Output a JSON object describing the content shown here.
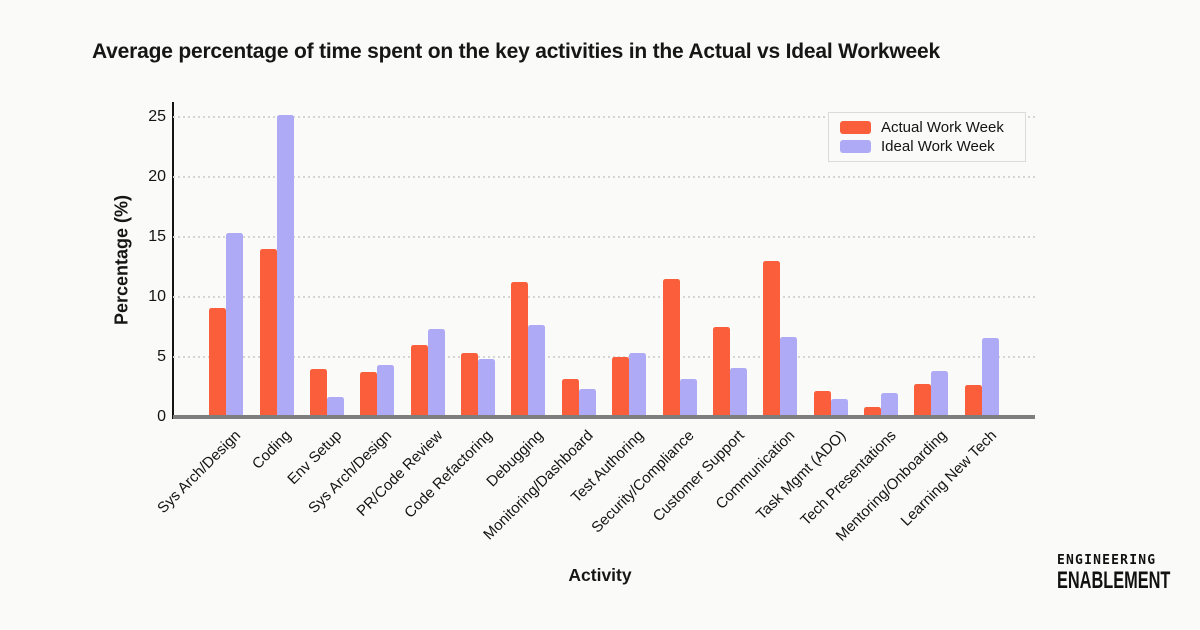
{
  "chart_data": {
    "type": "bar",
    "title": "Average percentage of time spent on the key activities in the Actual vs Ideal Workweek",
    "xlabel": "Activity",
    "ylabel": "Percentage (%)",
    "ylim": [
      0,
      26.25
    ],
    "yticks": [
      0,
      5,
      10,
      15,
      20,
      25
    ],
    "grid": "horizontal-dotted",
    "legend_position": "top-right",
    "categories": [
      "Sys Arch/Design",
      "Coding",
      "Env Setup",
      "Sys Arch/Design",
      "PR/Code Review",
      "Code Refactoring",
      "Debugging",
      "Monitoring/Dashboard",
      "Test Authoring",
      "Security/Compliance",
      "Customer Support",
      "Communication",
      "Task Mgmt (ADO)",
      "Tech Presentations",
      "Mentoring/Onboarding",
      "Learning New Tech"
    ],
    "series": [
      {
        "name": "Actual Work Week",
        "color": "#FA5E3B",
        "values": [
          8.9,
          13.8,
          3.8,
          3.6,
          5.8,
          5.2,
          11.1,
          3.0,
          4.8,
          11.3,
          7.3,
          12.8,
          2.0,
          0.7,
          2.6,
          2.5
        ]
      },
      {
        "name": "Ideal Work Week",
        "color": "#AFAAF5",
        "values": [
          15.2,
          25.0,
          1.5,
          4.2,
          7.2,
          4.7,
          7.5,
          2.2,
          5.2,
          3.0,
          3.9,
          6.5,
          1.3,
          1.8,
          3.7,
          6.4
        ]
      }
    ]
  },
  "colors": {
    "background": "#FAFAF8",
    "actual_bar": "#FA5E3B",
    "ideal_bar": "#AFAAF5",
    "y_axis_line": "#141414",
    "x_axis_line": "#7E7E7E",
    "gridline": "#D5D5D1",
    "text": "#141414"
  },
  "branding": {
    "line1": "ENGINEERING",
    "line2": "ENABLEMENT"
  }
}
